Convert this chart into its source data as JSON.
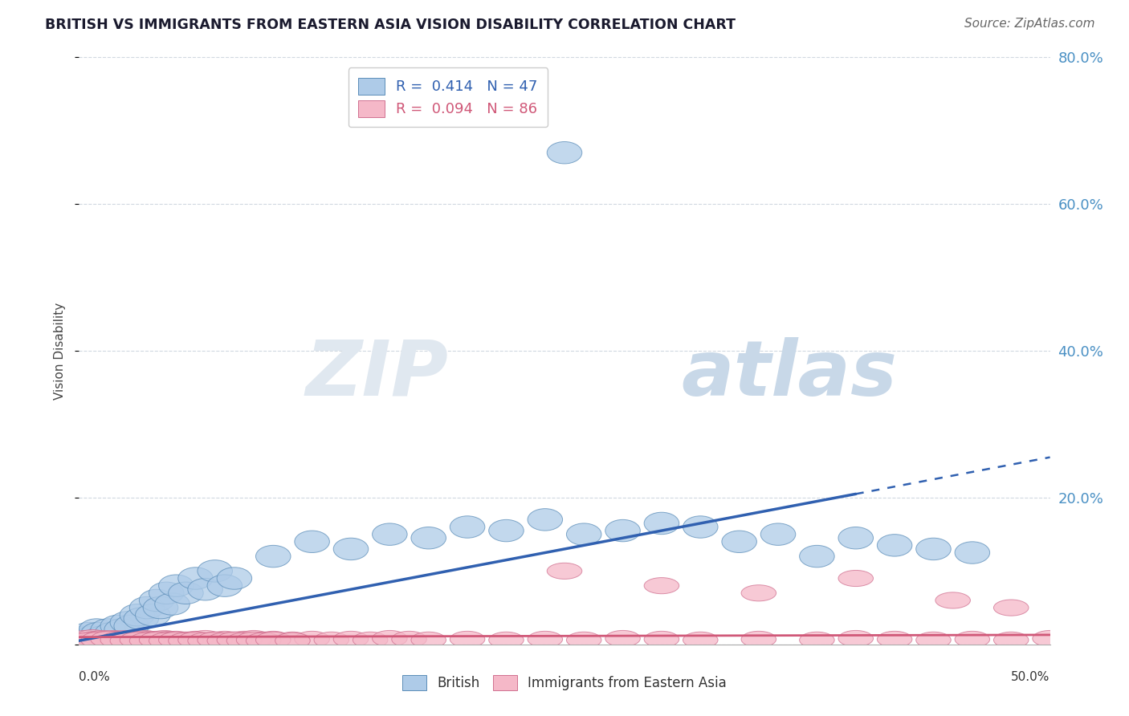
{
  "title": "BRITISH VS IMMIGRANTS FROM EASTERN ASIA VISION DISABILITY CORRELATION CHART",
  "source": "Source: ZipAtlas.com",
  "ylabel": "Vision Disability",
  "x_min": 0.0,
  "x_max": 0.5,
  "y_min": 0.0,
  "y_max": 0.8,
  "yticks": [
    0.0,
    0.2,
    0.4,
    0.6,
    0.8
  ],
  "ytick_labels": [
    "",
    "20.0%",
    "40.0%",
    "60.0%",
    "80.0%"
  ],
  "british_R": "0.414",
  "british_N": "47",
  "immigrants_R": "0.094",
  "immigrants_N": "86",
  "blue_fill": "#AECBE8",
  "blue_edge": "#5B8DB8",
  "pink_fill": "#F5B8C8",
  "pink_edge": "#D07090",
  "blue_line": "#3060B0",
  "pink_line": "#D05878",
  "background_color": "#FFFFFF",
  "grid_color": "#D0D8E0",
  "british_x": [
    0.003,
    0.005,
    0.007,
    0.009,
    0.01,
    0.012,
    0.015,
    0.017,
    0.02,
    0.022,
    0.025,
    0.027,
    0.03,
    0.032,
    0.035,
    0.038,
    0.04,
    0.042,
    0.045,
    0.048,
    0.05,
    0.055,
    0.06,
    0.065,
    0.07,
    0.075,
    0.08,
    0.1,
    0.12,
    0.14,
    0.16,
    0.18,
    0.2,
    0.22,
    0.24,
    0.26,
    0.28,
    0.3,
    0.32,
    0.34,
    0.36,
    0.38,
    0.4,
    0.42,
    0.44,
    0.46,
    0.25
  ],
  "british_y": [
    0.01,
    0.015,
    0.01,
    0.02,
    0.015,
    0.01,
    0.02,
    0.015,
    0.025,
    0.02,
    0.03,
    0.025,
    0.04,
    0.035,
    0.05,
    0.04,
    0.06,
    0.05,
    0.07,
    0.055,
    0.08,
    0.07,
    0.09,
    0.075,
    0.1,
    0.08,
    0.09,
    0.12,
    0.14,
    0.13,
    0.15,
    0.145,
    0.16,
    0.155,
    0.17,
    0.15,
    0.155,
    0.165,
    0.16,
    0.14,
    0.15,
    0.12,
    0.145,
    0.135,
    0.13,
    0.125,
    0.67
  ],
  "immigrants_x": [
    0.001,
    0.003,
    0.005,
    0.007,
    0.009,
    0.01,
    0.012,
    0.014,
    0.016,
    0.018,
    0.02,
    0.022,
    0.024,
    0.026,
    0.028,
    0.03,
    0.032,
    0.034,
    0.036,
    0.038,
    0.04,
    0.042,
    0.044,
    0.046,
    0.048,
    0.05,
    0.055,
    0.06,
    0.065,
    0.07,
    0.075,
    0.08,
    0.085,
    0.09,
    0.095,
    0.1,
    0.11,
    0.12,
    0.13,
    0.14,
    0.15,
    0.16,
    0.17,
    0.18,
    0.2,
    0.22,
    0.24,
    0.26,
    0.28,
    0.3,
    0.32,
    0.35,
    0.38,
    0.4,
    0.42,
    0.44,
    0.46,
    0.48,
    0.5,
    0.25,
    0.3,
    0.35,
    0.4,
    0.45,
    0.48,
    0.005,
    0.01,
    0.015,
    0.02,
    0.025,
    0.03,
    0.035,
    0.04,
    0.045,
    0.05,
    0.055,
    0.06,
    0.065,
    0.07,
    0.075,
    0.08,
    0.085,
    0.09,
    0.095,
    0.1,
    0.11
  ],
  "immigrants_y": [
    0.005,
    0.008,
    0.006,
    0.009,
    0.007,
    0.006,
    0.008,
    0.007,
    0.006,
    0.008,
    0.007,
    0.006,
    0.008,
    0.007,
    0.006,
    0.007,
    0.006,
    0.008,
    0.007,
    0.006,
    0.007,
    0.006,
    0.008,
    0.007,
    0.006,
    0.007,
    0.006,
    0.007,
    0.008,
    0.006,
    0.007,
    0.006,
    0.007,
    0.008,
    0.006,
    0.007,
    0.006,
    0.007,
    0.006,
    0.007,
    0.006,
    0.008,
    0.007,
    0.006,
    0.007,
    0.006,
    0.007,
    0.006,
    0.008,
    0.007,
    0.006,
    0.007,
    0.006,
    0.008,
    0.007,
    0.006,
    0.007,
    0.006,
    0.008,
    0.1,
    0.08,
    0.07,
    0.09,
    0.06,
    0.05,
    0.005,
    0.006,
    0.007,
    0.006,
    0.005,
    0.006,
    0.005,
    0.006,
    0.005,
    0.006,
    0.005,
    0.006,
    0.005,
    0.006,
    0.005,
    0.006,
    0.005,
    0.006,
    0.005,
    0.006,
    0.005
  ],
  "watermark_zip": "ZIP",
  "watermark_atlas": "atlas",
  "watermark_color_zip": "#E0E8F0",
  "watermark_color_atlas": "#C8D8E8"
}
